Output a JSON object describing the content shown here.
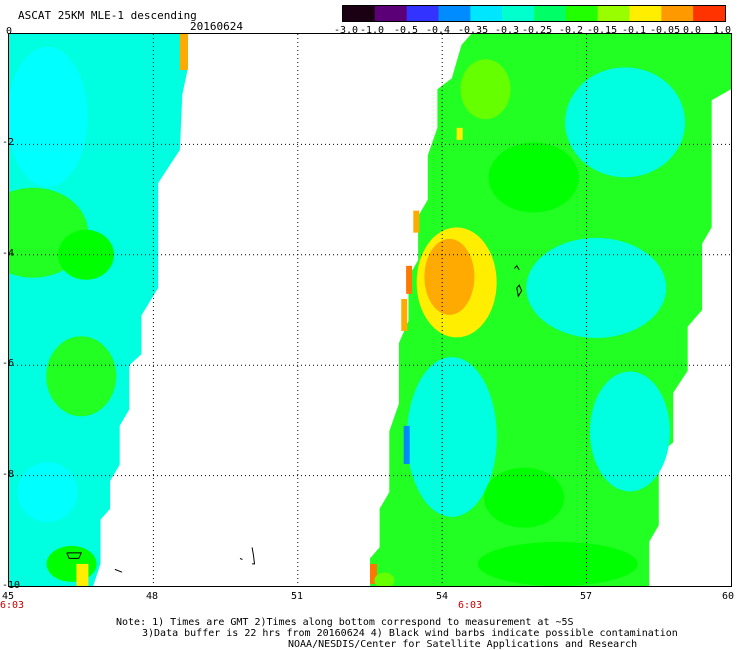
{
  "header": {
    "title": "ASCAT 25KM MLE-1 descending",
    "date": "20160624"
  },
  "colorbar": {
    "labels": [
      "-3.0",
      "-1.0",
      "-0.5",
      "-0.4",
      "-0.35",
      "-0.3",
      "-0.25",
      "-0.2",
      "-0.15",
      "-0.1",
      "-0.05",
      "0.0",
      "1.0"
    ],
    "colors": [
      "#1a0012",
      "#5c0077",
      "#3333ff",
      "#008cff",
      "#00e6ff",
      "#00ffcc",
      "#00ff66",
      "#22ff00",
      "#99ff00",
      "#ffee00",
      "#ff9900",
      "#ff3300"
    ]
  },
  "map": {
    "lon_range": [
      45,
      60
    ],
    "lat_range": [
      -10,
      0
    ],
    "lon_labels": [
      "45",
      "48",
      "51",
      "54",
      "57",
      "60"
    ],
    "lat_labels": [
      "0",
      "-2",
      "-4",
      "-6",
      "-8",
      "-10"
    ],
    "time_labels": [
      "6:03",
      "6:03"
    ],
    "swath_colors": {
      "cyan": "#00ffe0",
      "light_cyan": "#00ffff",
      "green": "#22ff22",
      "bright_green": "#00ff00",
      "lime": "#66ff00",
      "yellow": "#ffee00",
      "orange": "#ffaa00",
      "dark_orange": "#ff7700",
      "blue": "#0088ff"
    }
  },
  "notes": {
    "line1": "Note: 1) Times are GMT 2)Times along bottom correspond to measurement at ~5S",
    "line2": "3)Data buffer is 22 hrs from 20160624 4) Black wind barbs indicate possible contamination",
    "line3": "NOAA/NESDIS/Center for Satellite Applications and Research"
  }
}
